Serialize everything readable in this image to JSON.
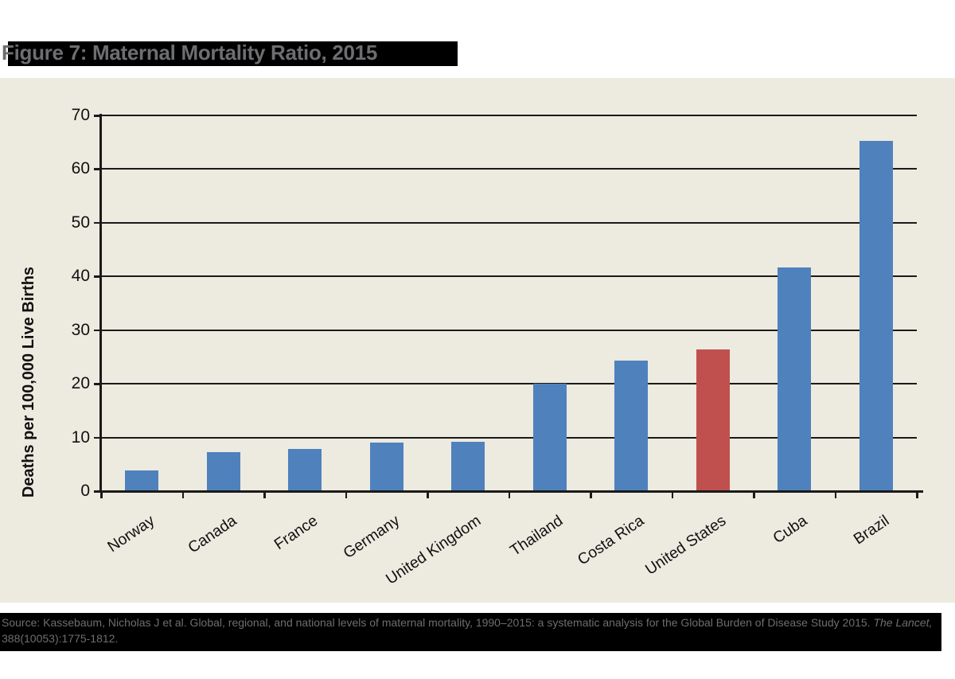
{
  "chart_data": {
    "type": "bar",
    "title": "Figure 7: Maternal Mortality Ratio, 2015",
    "categories": [
      "Norway",
      "Canada",
      "France",
      "Germany",
      "United Kingdom",
      "Thailand",
      "Costa Rica",
      "United States",
      "Cuba",
      "Brazil"
    ],
    "values": [
      3.8,
      7.3,
      7.8,
      9.0,
      9.2,
      20.0,
      24.3,
      26.4,
      41.7,
      65.3
    ],
    "highlight_category": "United States",
    "xlabel": "",
    "ylabel": "Deaths per 100,000 Live Births",
    "ylim": [
      0,
      70
    ],
    "yticks": [
      0,
      10,
      20,
      30,
      40,
      50,
      60,
      70
    ],
    "grid": true,
    "legend": "none",
    "colors": {
      "bar": "#4f81bd",
      "highlight_bar": "#c0504d",
      "plot_background": "#edeae0",
      "gridline": "#1a1a1a",
      "title_text": "#6d6e71",
      "title_background": "#000000",
      "axis_text": "#111111"
    }
  },
  "footer": {
    "source_before_italic": "Source: Kassebaum, Nicholas J et al. Global, regional, and national levels of maternal mortality, 1990–2015: a systematic analysis for the Global Burden of Disease Study 2015. ",
    "source_italic": "The Lancet,",
    "source_line2": "388(10053):1775-1812.",
    "text_color": "#6d6e71",
    "background": "#000000"
  }
}
